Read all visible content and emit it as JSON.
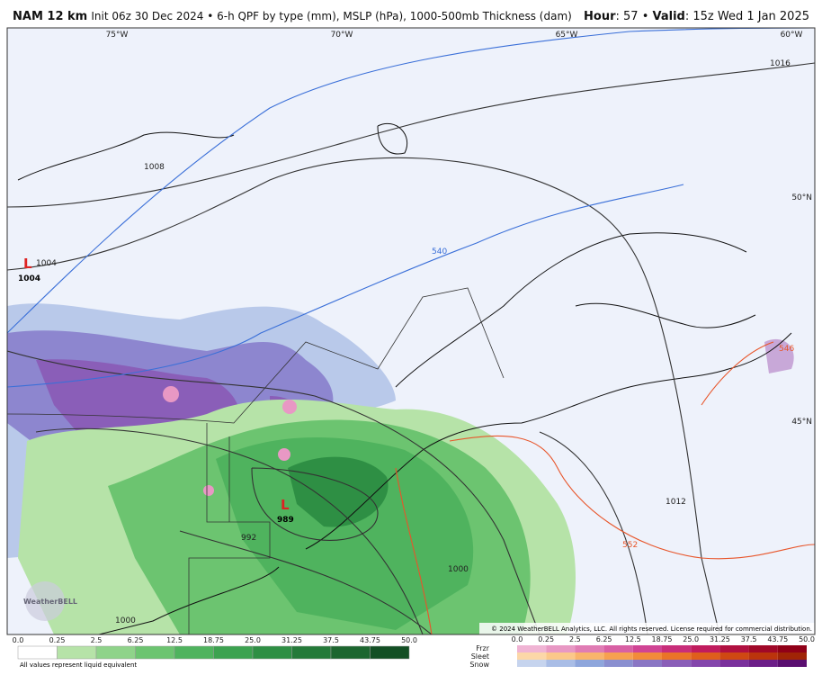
{
  "header": {
    "model": "NAM 12 km",
    "description": "Init 06z 30 Dec 2024 • 6-h QPF by type (mm), MSLP (hPa), 1000-500mb Thickness (dam)",
    "hour_label": "Hour",
    "hour": "57",
    "valid_label": "Valid",
    "valid": "15z Wed 1 Jan 2025"
  },
  "map": {
    "longitudes": [
      "75°W",
      "70°W",
      "65°W",
      "60°W"
    ],
    "latitudes": [
      "50°N",
      "45°N"
    ],
    "isobar_labels": [
      "1016",
      "1008",
      "1004",
      "992",
      "1000",
      "1012",
      "1000"
    ],
    "thickness_labels": [
      "540",
      "552",
      "546"
    ],
    "lows": [
      {
        "symbol": "L",
        "pressure": "1004"
      },
      {
        "symbol": "L",
        "pressure": "989"
      }
    ],
    "copyright": "© 2024 WeatherBELL Analytics, LLC. All rights reserved. License required for commercial distribution.",
    "logo": "WeatherBELL"
  },
  "legend": {
    "rain": {
      "ticks": [
        "0.0",
        "0.25",
        "2.5",
        "6.25",
        "12.5",
        "18.75",
        "25.0",
        "31.25",
        "37.5",
        "43.75",
        "50.0"
      ],
      "colors": [
        "#ffffff",
        "#b6e3a8",
        "#8fd38a",
        "#6cc470",
        "#4fb35e",
        "#3ca250",
        "#2e8f44",
        "#247a39",
        "#1c662f",
        "#134f24"
      ],
      "note": "All values represent liquid equivalent"
    },
    "mixed": {
      "types": [
        "Frzr",
        "Sleet",
        "Snow"
      ],
      "ticks": [
        "0.0",
        "0.25",
        "2.5",
        "6.25",
        "12.5",
        "18.75",
        "25.0",
        "31.25",
        "37.5",
        "43.75",
        "50.0"
      ],
      "colors": [
        [
          "#f0b4d4",
          "#e898c4",
          "#e07cb4",
          "#d860a4",
          "#d04494",
          "#c82e7a",
          "#c01c5e",
          "#b01040",
          "#a00828",
          "#900018"
        ],
        [
          "#fcd7a8",
          "#fbc88a",
          "#f9b46c",
          "#f7a050",
          "#f28b3a",
          "#ea7428",
          "#df5e1c",
          "#cf4812",
          "#bb340c",
          "#a02406"
        ],
        [
          "#c6d4ee",
          "#a9bde6",
          "#8ea6dc",
          "#8a8fd0",
          "#8a76c4",
          "#8a5eb8",
          "#8446ac",
          "#7a309c",
          "#6c1e88",
          "#5a0e70"
        ]
      ]
    }
  }
}
